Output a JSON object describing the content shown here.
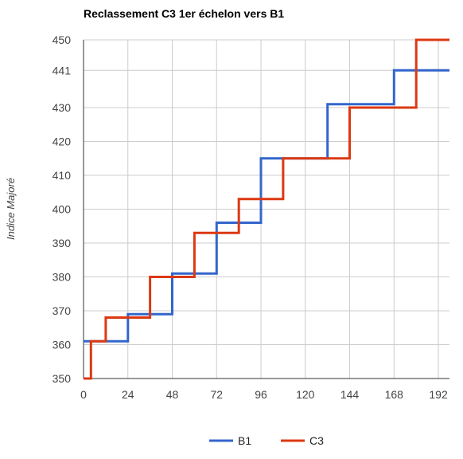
{
  "chart_data": {
    "type": "line",
    "step": true,
    "title": "Reclassement C3 1er échelon vers B1",
    "xlabel": "",
    "ylabel": "Indice Majoré",
    "xlim": [
      0,
      198
    ],
    "ylim": [
      350,
      450
    ],
    "x_ticks": [
      0,
      24,
      48,
      72,
      96,
      120,
      144,
      168,
      192
    ],
    "y_ticks": [
      350,
      360,
      370,
      380,
      390,
      400,
      410,
      420,
      430,
      441,
      450
    ],
    "grid": true,
    "legend_position": "bottom",
    "series": [
      {
        "name": "B1",
        "color": "#3366cc",
        "points": [
          [
            0,
            361
          ],
          [
            24,
            361
          ],
          [
            24,
            369
          ],
          [
            48,
            369
          ],
          [
            48,
            381
          ],
          [
            72,
            381
          ],
          [
            72,
            396
          ],
          [
            96,
            396
          ],
          [
            96,
            415
          ],
          [
            132,
            415
          ],
          [
            132,
            431
          ],
          [
            168,
            431
          ],
          [
            168,
            441
          ],
          [
            198,
            441
          ]
        ]
      },
      {
        "name": "C3",
        "color": "#dc3912",
        "points": [
          [
            0,
            350
          ],
          [
            4,
            350
          ],
          [
            4,
            361
          ],
          [
            12,
            361
          ],
          [
            12,
            368
          ],
          [
            36,
            368
          ],
          [
            36,
            380
          ],
          [
            60,
            380
          ],
          [
            60,
            393
          ],
          [
            84,
            393
          ],
          [
            84,
            403
          ],
          [
            108,
            403
          ],
          [
            108,
            415
          ],
          [
            144,
            415
          ],
          [
            144,
            430
          ],
          [
            180,
            430
          ],
          [
            180,
            450
          ],
          [
            198,
            450
          ]
        ]
      }
    ]
  }
}
